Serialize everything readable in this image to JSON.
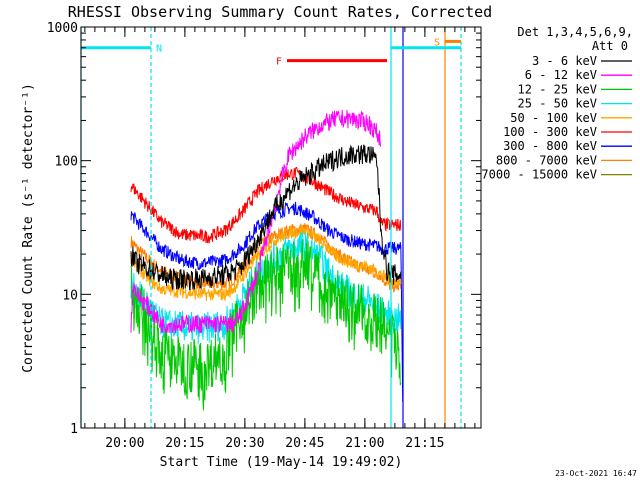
{
  "chart_data": {
    "type": "line",
    "title": "RHESSI Observing Summary Count Rates, Corrected",
    "xlabel": "Start Time (19-May-14 19:49:02)",
    "ylabel": "Corrected Count Rate (s⁻¹ detector⁻¹)",
    "yscale": "log",
    "ylim": [
      1,
      1000
    ],
    "xlim_minutes": [
      0,
      100
    ],
    "x_tick_labels": [
      "20:00",
      "20:15",
      "20:30",
      "20:45",
      "21:00",
      "21:15"
    ],
    "x_tick_minutes": [
      10.97,
      25.97,
      40.97,
      55.97,
      70.97,
      85.97
    ],
    "y_tick_labels": [
      "1",
      "10",
      "100",
      "1000"
    ],
    "y_tick_values": [
      1,
      10,
      100,
      1000
    ],
    "legend_header": [
      "Det 1,3,4,5,6,9,",
      "Att 0"
    ],
    "legend_placement": "right",
    "timestamp": "23-Oct-2021 16:47",
    "flags": [
      {
        "label": "N",
        "color": "#00e5ee",
        "x_start": 0,
        "x_end": 17.5,
        "y": 700
      },
      {
        "label": "F",
        "color": "#ff0000",
        "x_start": 51.5,
        "x_end": 76.5,
        "y": 560
      },
      {
        "label": "S",
        "color": "#ff7f00",
        "x_start": 91,
        "x_end": 95,
        "y": 780
      }
    ],
    "flag_lines": [
      {
        "color": "#00e5ee",
        "x_start": 77.5,
        "x_end": 95,
        "y": 700
      }
    ],
    "vlines": [
      {
        "x": 0,
        "color": "#00e5ee",
        "style": "solid"
      },
      {
        "x": 17.5,
        "color": "#00e5ee",
        "style": "dashed"
      },
      {
        "x": 77.5,
        "color": "#00e5ee",
        "style": "solid"
      },
      {
        "x": 80.5,
        "color": "#0000ff",
        "style": "solid"
      },
      {
        "x": 91,
        "color": "#ff7f00",
        "style": "solid"
      },
      {
        "x": 95,
        "color": "#00e5ee",
        "style": "dashed"
      }
    ],
    "series": [
      {
        "name": "3 - 6 keV",
        "color": "#000000",
        "noise": 0.08,
        "points": [
          [
            12.5,
            20
          ],
          [
            14,
            17
          ],
          [
            18,
            15
          ],
          [
            22,
            13
          ],
          [
            30,
            13
          ],
          [
            36,
            14
          ],
          [
            40,
            16
          ],
          [
            44,
            25
          ],
          [
            48,
            42
          ],
          [
            52,
            60
          ],
          [
            56,
            75
          ],
          [
            60,
            90
          ],
          [
            64,
            105
          ],
          [
            68,
            112
          ],
          [
            72,
            112
          ],
          [
            74,
            100
          ],
          [
            75,
            30
          ],
          [
            76.5,
            15
          ],
          [
            78,
            14
          ],
          [
            80,
            14
          ]
        ]
      },
      {
        "name": "6 - 12 keV",
        "color": "#ff00ff",
        "noise": 0.07,
        "points": [
          [
            12.5,
            6
          ],
          [
            13,
            12
          ],
          [
            14,
            10
          ],
          [
            17,
            8
          ],
          [
            20,
            6
          ],
          [
            30,
            6
          ],
          [
            36,
            6
          ],
          [
            38,
            6
          ],
          [
            40,
            7
          ],
          [
            44,
            14
          ],
          [
            48,
            40
          ],
          [
            50,
            70
          ],
          [
            52,
            110
          ],
          [
            56,
            150
          ],
          [
            60,
            185
          ],
          [
            64,
            205
          ],
          [
            68,
            205
          ],
          [
            72,
            190
          ],
          [
            74,
            160
          ],
          [
            75,
            140
          ]
        ]
      },
      {
        "name": "12 - 25 keV",
        "color": "#00c800",
        "noise": 0.2,
        "points": [
          [
            12.5,
            11
          ],
          [
            14,
            9
          ],
          [
            17,
            6
          ],
          [
            20,
            4
          ],
          [
            25,
            3
          ],
          [
            32,
            3
          ],
          [
            36,
            4
          ],
          [
            38,
            5
          ],
          [
            40,
            7
          ],
          [
            44,
            11
          ],
          [
            48,
            14
          ],
          [
            52,
            16
          ],
          [
            56,
            17
          ],
          [
            60,
            14
          ],
          [
            64,
            10
          ],
          [
            68,
            8
          ],
          [
            72,
            7
          ],
          [
            75,
            6
          ],
          [
            76.5,
            5
          ],
          [
            78,
            4.5
          ],
          [
            80,
            4.5
          ]
        ]
      },
      {
        "name": "25 - 50 keV",
        "color": "#00e5ee",
        "noise": 0.12,
        "points": [
          [
            12.5,
            12
          ],
          [
            14,
            10
          ],
          [
            17,
            8
          ],
          [
            20,
            6
          ],
          [
            30,
            5.5
          ],
          [
            36,
            6
          ],
          [
            38,
            7
          ],
          [
            40,
            9
          ],
          [
            44,
            14
          ],
          [
            48,
            18
          ],
          [
            52,
            22
          ],
          [
            56,
            23
          ],
          [
            60,
            18
          ],
          [
            64,
            12
          ],
          [
            68,
            10
          ],
          [
            72,
            9
          ],
          [
            75,
            7.5
          ],
          [
            76.5,
            7
          ],
          [
            78,
            6.5
          ],
          [
            80,
            6.5
          ]
        ]
      },
      {
        "name": "50 - 100 keV",
        "color": "#ffa500",
        "noise": 0.05,
        "points": [
          [
            12.5,
            19
          ],
          [
            14,
            16
          ],
          [
            17,
            13
          ],
          [
            20,
            11
          ],
          [
            30,
            10
          ],
          [
            36,
            10
          ],
          [
            38,
            11
          ],
          [
            40,
            13
          ],
          [
            44,
            19
          ],
          [
            48,
            25
          ],
          [
            52,
            29
          ],
          [
            56,
            30
          ],
          [
            60,
            25
          ],
          [
            64,
            19
          ],
          [
            68,
            17
          ],
          [
            72,
            16
          ],
          [
            75,
            14
          ],
          [
            76.5,
            13
          ],
          [
            78,
            12.5
          ],
          [
            80,
            12.5
          ]
        ]
      },
      {
        "name": "100 - 300 keV",
        "color": "#ff0000",
        "noise": 0.05,
        "points": [
          [
            12.5,
            65
          ],
          [
            14,
            58
          ],
          [
            17,
            45
          ],
          [
            20,
            35
          ],
          [
            25,
            28
          ],
          [
            32,
            27
          ],
          [
            36,
            30
          ],
          [
            40,
            40
          ],
          [
            44,
            58
          ],
          [
            48,
            72
          ],
          [
            52,
            80
          ],
          [
            54,
            80
          ],
          [
            58,
            70
          ],
          [
            62,
            58
          ],
          [
            66,
            50
          ],
          [
            70,
            45
          ],
          [
            74,
            42
          ],
          [
            75,
            34
          ],
          [
            76.5,
            33
          ],
          [
            78,
            33
          ],
          [
            80,
            33
          ]
        ]
      },
      {
        "name": "300 - 800 keV",
        "color": "#0000ff",
        "noise": 0.05,
        "points": [
          [
            12.5,
            40
          ],
          [
            14,
            35
          ],
          [
            17,
            28
          ],
          [
            20,
            22
          ],
          [
            25,
            18
          ],
          [
            30,
            17
          ],
          [
            36,
            18
          ],
          [
            40,
            22
          ],
          [
            44,
            32
          ],
          [
            48,
            40
          ],
          [
            52,
            44
          ],
          [
            54,
            44
          ],
          [
            58,
            38
          ],
          [
            62,
            30
          ],
          [
            66,
            26
          ],
          [
            70,
            24
          ],
          [
            74,
            23
          ],
          [
            75,
            22
          ],
          [
            76.5,
            22
          ],
          [
            78,
            22
          ],
          [
            80,
            22
          ],
          [
            80.5,
            1
          ]
        ]
      },
      {
        "name": "800 - 7000 keV",
        "color": "#ff7f00",
        "noise": 0.05,
        "points": [
          [
            12.5,
            25
          ],
          [
            14,
            22
          ],
          [
            17,
            18
          ],
          [
            20,
            15
          ],
          [
            25,
            13
          ],
          [
            30,
            12
          ],
          [
            36,
            12
          ],
          [
            38,
            13
          ],
          [
            40,
            15
          ],
          [
            44,
            22
          ],
          [
            48,
            27
          ],
          [
            52,
            30
          ],
          [
            56,
            31
          ],
          [
            60,
            26
          ],
          [
            64,
            20
          ],
          [
            68,
            17
          ],
          [
            72,
            15
          ],
          [
            75,
            14
          ],
          [
            76.5,
            12
          ],
          [
            78,
            11.5
          ],
          [
            80,
            11.5
          ]
        ]
      },
      {
        "name": "7000 - 15000 keV",
        "color": "#808000",
        "noise": 0,
        "points": []
      }
    ]
  }
}
